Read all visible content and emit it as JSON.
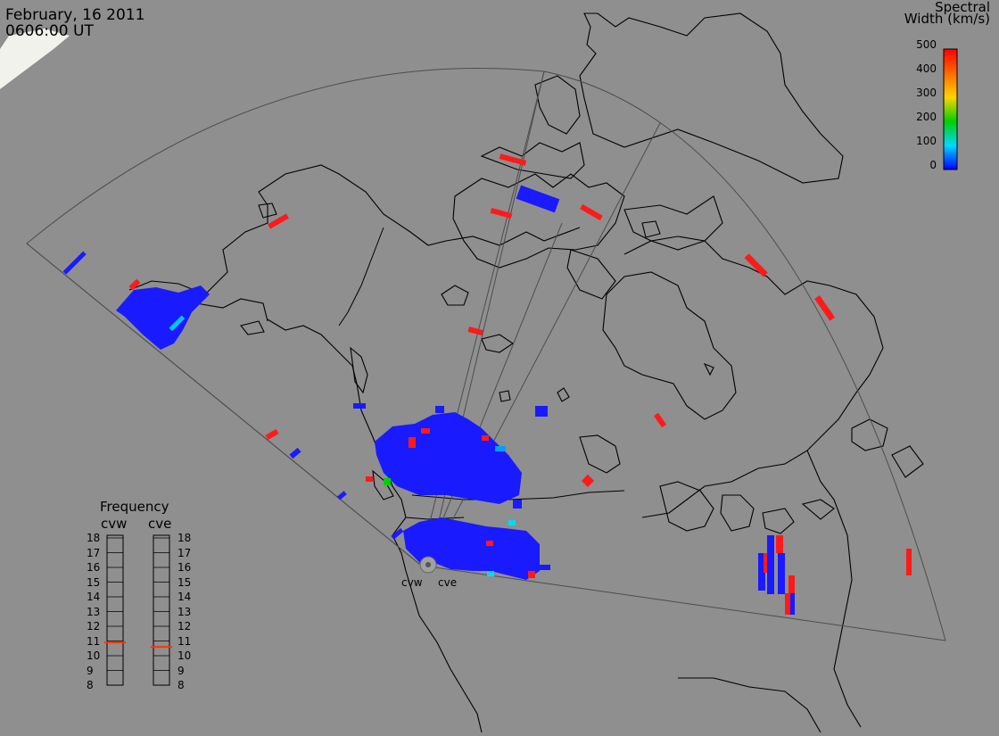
{
  "header": {
    "date": "February, 16 2011",
    "time": "0606:00 UT"
  },
  "colorbar": {
    "title_line1": "Spectral",
    "title_line2": "Width (km/s)",
    "ticks": [
      "500",
      "400",
      "300",
      "200",
      "100",
      "0"
    ],
    "colors": [
      "#ff0000",
      "#ff6a00",
      "#ffd400",
      "#00d000",
      "#00d8ff",
      "#0000ff"
    ]
  },
  "frequency": {
    "title": "Frequency",
    "left_label": "cvw",
    "right_label": "cve",
    "scale": [
      "18",
      "17",
      "16",
      "15",
      "14",
      "13",
      "12",
      "11",
      "10",
      "9",
      "8"
    ],
    "cvw_mhz": 10.9,
    "cve_mhz": 10.6
  },
  "radars": {
    "west": "cvw",
    "east": "cve"
  },
  "colors": {
    "background": "#8f8f8f",
    "echo": "#1a1aff",
    "high_width": "#ff1a1a",
    "coast": "#000000",
    "fov": "#4a4a4a"
  }
}
